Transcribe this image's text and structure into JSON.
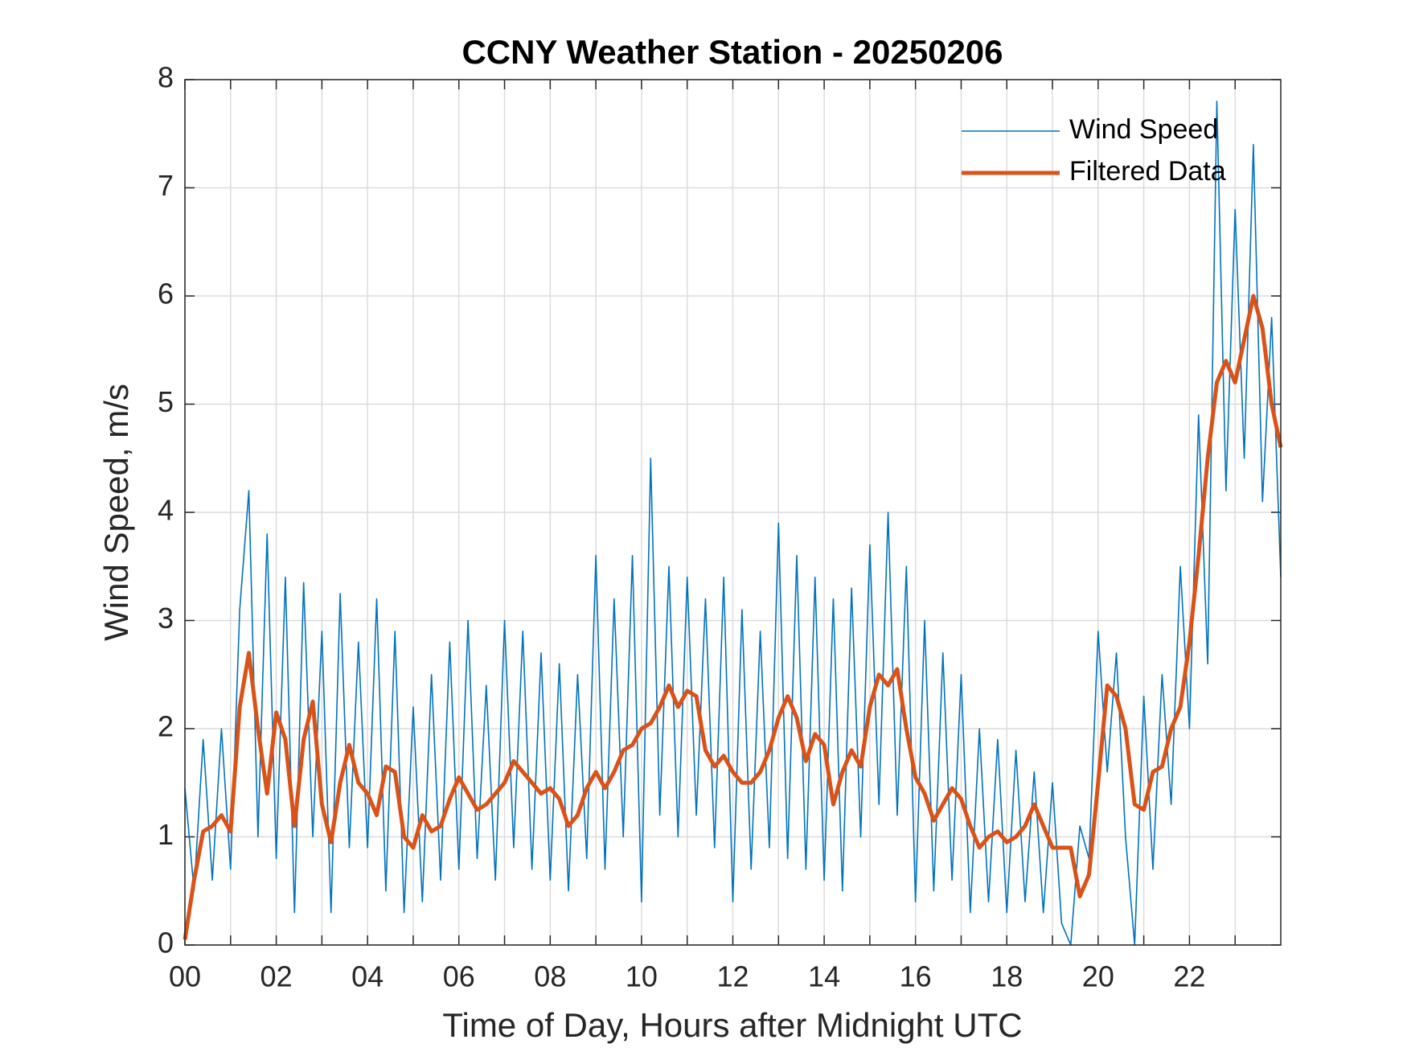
{
  "chart_data": {
    "type": "line",
    "title": "CCNY Weather Station - 20250206",
    "xlabel": "Time of Day, Hours after Midnight UTC",
    "ylabel": "Wind Speed, m/s",
    "x": [
      0,
      0.2,
      0.4,
      0.6,
      0.8,
      1,
      1.2,
      1.4,
      1.6,
      1.8,
      2,
      2.2,
      2.4,
      2.6,
      2.8,
      3,
      3.2,
      3.4,
      3.6,
      3.8,
      4,
      4.2,
      4.4,
      4.6,
      4.8,
      5,
      5.2,
      5.4,
      5.6,
      5.8,
      6,
      6.2,
      6.4,
      6.6,
      6.8,
      7,
      7.2,
      7.4,
      7.6,
      7.8,
      8,
      8.2,
      8.4,
      8.6,
      8.8,
      9,
      9.2,
      9.4,
      9.6,
      9.8,
      10,
      10.2,
      10.4,
      10.6,
      10.8,
      11,
      11.2,
      11.4,
      11.6,
      11.8,
      12,
      12.2,
      12.4,
      12.6,
      12.8,
      13,
      13.2,
      13.4,
      13.6,
      13.8,
      14,
      14.2,
      14.4,
      14.6,
      14.8,
      15,
      15.2,
      15.4,
      15.6,
      15.8,
      16,
      16.2,
      16.4,
      16.6,
      16.8,
      17,
      17.2,
      17.4,
      17.6,
      17.8,
      18,
      18.2,
      18.4,
      18.6,
      18.8,
      19,
      19.2,
      19.4,
      19.6,
      19.8,
      20,
      20.2,
      20.4,
      20.6,
      20.8,
      21,
      21.2,
      21.4,
      21.6,
      21.8,
      22,
      22.2,
      22.4,
      22.6,
      22.8,
      23,
      23.2,
      23.4,
      23.6,
      23.8,
      24
    ],
    "series": [
      {
        "name": "Wind Speed",
        "color": "#0072BD",
        "width": 1.6,
        "values": [
          1.45,
          0.5,
          1.9,
          0.6,
          2.0,
          0.7,
          3.1,
          4.2,
          1.0,
          3.8,
          0.8,
          3.4,
          0.3,
          3.35,
          1.0,
          2.9,
          0.3,
          3.25,
          0.9,
          2.8,
          0.9,
          3.2,
          0.5,
          2.9,
          0.3,
          2.2,
          0.4,
          2.5,
          0.6,
          2.8,
          0.7,
          3.0,
          0.8,
          2.4,
          0.6,
          3.0,
          0.9,
          2.9,
          0.7,
          2.7,
          0.6,
          2.6,
          0.5,
          2.5,
          0.8,
          3.6,
          0.7,
          3.2,
          1.0,
          3.6,
          0.4,
          4.5,
          1.2,
          3.5,
          1.0,
          3.4,
          1.2,
          3.2,
          0.9,
          3.4,
          0.4,
          3.1,
          0.7,
          2.9,
          0.9,
          3.9,
          0.8,
          3.6,
          0.7,
          3.4,
          0.6,
          3.2,
          0.5,
          3.3,
          1.0,
          3.7,
          1.3,
          4.0,
          1.2,
          3.5,
          0.4,
          3.0,
          0.5,
          2.7,
          0.6,
          2.5,
          0.3,
          2.0,
          0.4,
          1.9,
          0.3,
          1.8,
          0.4,
          1.6,
          0.3,
          1.5,
          0.2,
          0.0,
          1.1,
          0.8,
          2.9,
          1.6,
          2.7,
          1.0,
          0.0,
          2.3,
          0.7,
          2.5,
          1.3,
          3.5,
          2.0,
          4.9,
          2.6,
          7.8,
          4.2,
          6.8,
          4.5,
          7.4,
          4.1,
          5.8,
          3.4
        ]
      },
      {
        "name": "Filtered Data",
        "color": "#D95319",
        "width": 5,
        "values": [
          0.05,
          0.6,
          1.05,
          1.1,
          1.2,
          1.05,
          2.2,
          2.7,
          2.0,
          1.4,
          2.15,
          1.9,
          1.1,
          1.9,
          2.25,
          1.3,
          0.95,
          1.5,
          1.85,
          1.5,
          1.4,
          1.2,
          1.65,
          1.6,
          1.0,
          0.9,
          1.2,
          1.05,
          1.1,
          1.35,
          1.55,
          1.4,
          1.25,
          1.3,
          1.4,
          1.5,
          1.7,
          1.6,
          1.5,
          1.4,
          1.45,
          1.35,
          1.1,
          1.2,
          1.45,
          1.6,
          1.45,
          1.6,
          1.8,
          1.85,
          2.0,
          2.05,
          2.2,
          2.4,
          2.2,
          2.35,
          2.3,
          1.8,
          1.65,
          1.75,
          1.6,
          1.5,
          1.5,
          1.6,
          1.8,
          2.1,
          2.3,
          2.1,
          1.7,
          1.95,
          1.85,
          1.3,
          1.6,
          1.8,
          1.65,
          2.2,
          2.5,
          2.4,
          2.55,
          2.0,
          1.55,
          1.4,
          1.15,
          1.3,
          1.45,
          1.35,
          1.1,
          0.9,
          1.0,
          1.05,
          0.95,
          1.0,
          1.1,
          1.3,
          1.1,
          0.9,
          0.9,
          0.9,
          0.45,
          0.65,
          1.5,
          2.4,
          2.3,
          2.0,
          1.3,
          1.25,
          1.6,
          1.65,
          2.0,
          2.2,
          2.8,
          3.6,
          4.5,
          5.2,
          5.4,
          5.2,
          5.6,
          6.0,
          5.7,
          5.0,
          4.6
        ]
      }
    ],
    "xlim": [
      0,
      24
    ],
    "xticks": [
      {
        "value": 0,
        "label": "00"
      },
      {
        "value": 2,
        "label": "02"
      },
      {
        "value": 4,
        "label": "04"
      },
      {
        "value": 6,
        "label": "06"
      },
      {
        "value": 8,
        "label": "08"
      },
      {
        "value": 10,
        "label": "10"
      },
      {
        "value": 12,
        "label": "12"
      },
      {
        "value": 14,
        "label": "14"
      },
      {
        "value": 16,
        "label": "16"
      },
      {
        "value": 18,
        "label": "18"
      },
      {
        "value": 20,
        "label": "20"
      },
      {
        "value": 22,
        "label": "22"
      }
    ],
    "x_minor_ticks": [
      1,
      3,
      5,
      7,
      9,
      11,
      13,
      15,
      17,
      19,
      21,
      23
    ],
    "ylim": [
      0,
      8
    ],
    "yticks": [
      0,
      1,
      2,
      3,
      4,
      5,
      6,
      7,
      8
    ],
    "grid": true,
    "legend": "upper right"
  }
}
